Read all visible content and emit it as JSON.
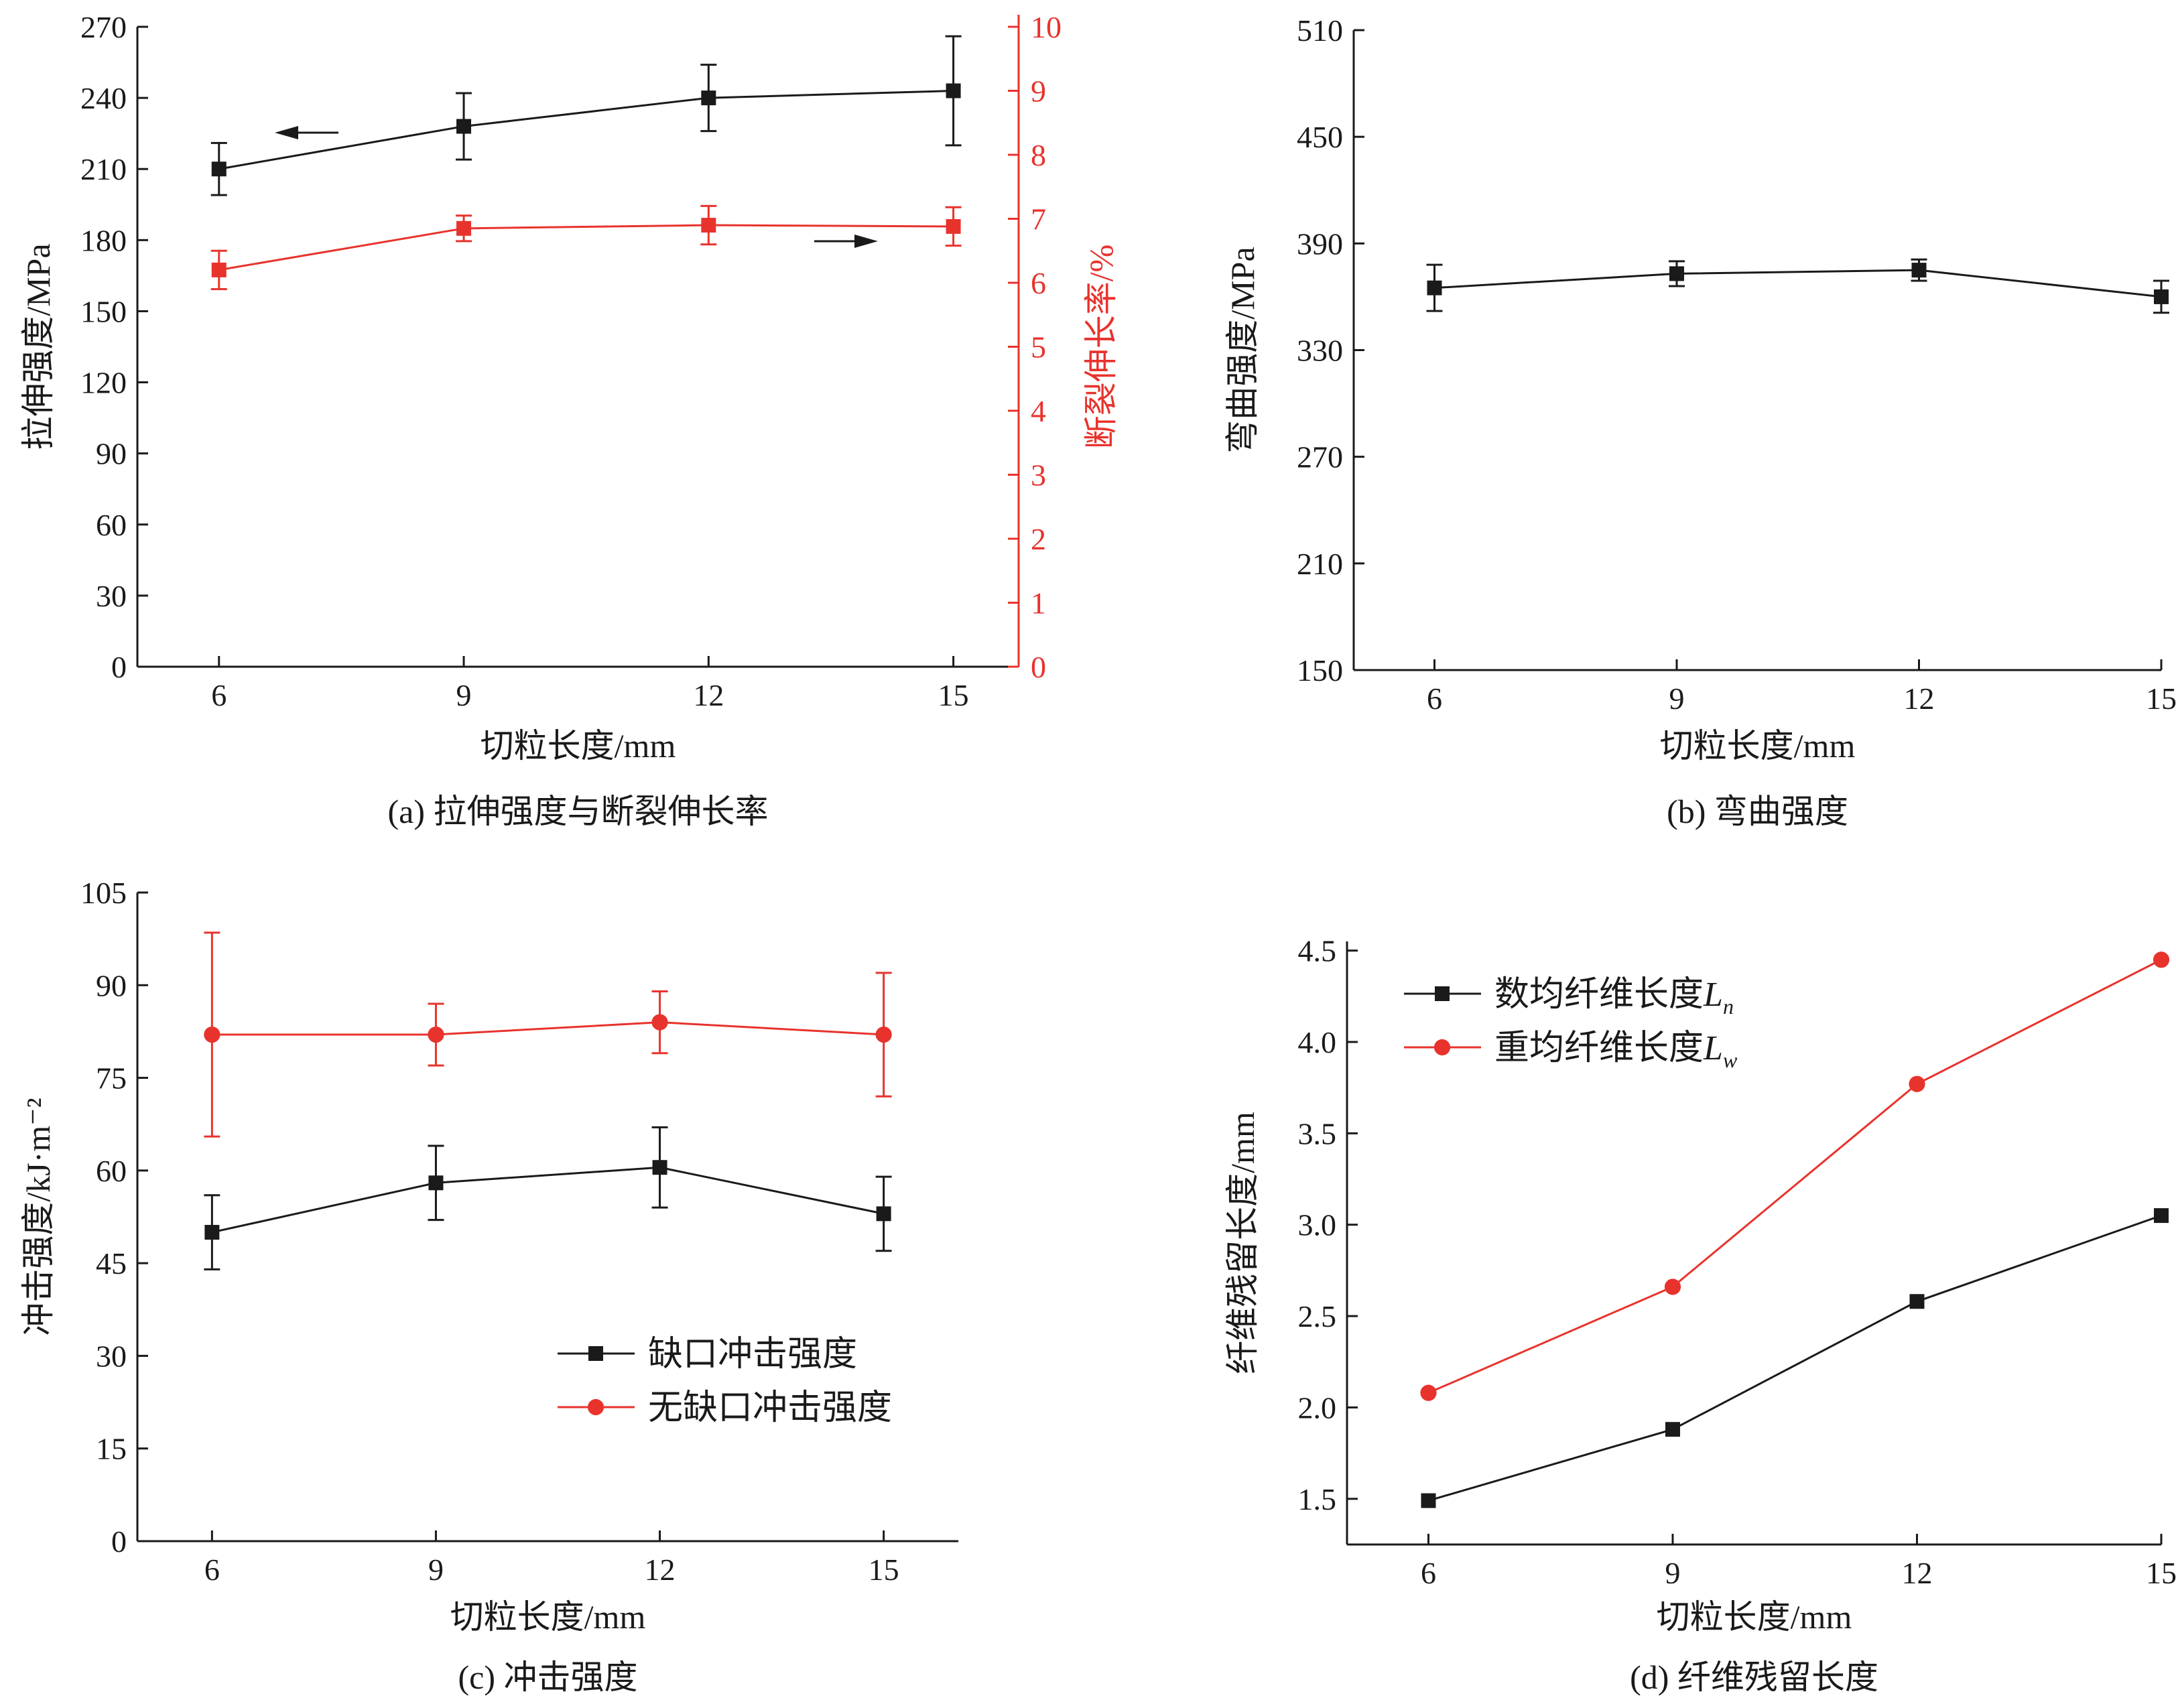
{
  "colors": {
    "black": "#1a1a1a",
    "red": "#e8332d"
  },
  "chart_data": [
    {
      "id": "a",
      "type": "line",
      "caption": "(a) 拉伸强度与断裂伸长率",
      "xlabel": "切粒长度/mm",
      "ylabel": "拉伸强度/MPa",
      "y2label": "断裂伸长率/%",
      "x": [
        6,
        9,
        12,
        15
      ],
      "xlim": [
        5,
        15.8
      ],
      "ylim": [
        0,
        270
      ],
      "yticks": [
        0,
        30,
        60,
        90,
        120,
        150,
        180,
        210,
        240,
        270
      ],
      "y2lim": [
        0,
        10
      ],
      "y2ticks": [
        0,
        1,
        2,
        3,
        4,
        5,
        6,
        7,
        8,
        9,
        10
      ],
      "series": [
        {
          "axis": "left",
          "color": "black",
          "marker": "square",
          "values": [
            210,
            228,
            240,
            243
          ],
          "errors": [
            11,
            14,
            14,
            23
          ]
        },
        {
          "axis": "right",
          "color": "red",
          "marker": "square",
          "values": [
            6.2,
            6.85,
            6.9,
            6.88
          ],
          "errors": [
            0.3,
            0.2,
            0.3,
            0.3
          ]
        }
      ]
    },
    {
      "id": "b",
      "type": "line",
      "caption": "(b) 弯曲强度",
      "xlabel": "切粒长度/mm",
      "ylabel": "弯曲强度/MPa",
      "x": [
        6,
        9,
        12,
        15
      ],
      "xlim": [
        5,
        15
      ],
      "ylim": [
        150,
        510
      ],
      "yticks": [
        150,
        210,
        270,
        330,
        390,
        450,
        510
      ],
      "series": [
        {
          "color": "black",
          "marker": "square",
          "values": [
            365,
            373,
            375,
            360
          ],
          "errors": [
            13,
            7,
            6,
            9
          ]
        }
      ]
    },
    {
      "id": "c",
      "type": "line",
      "caption": "(c) 冲击强度",
      "xlabel": "切粒长度/mm",
      "ylabel": "冲击强度/kJ·m⁻²",
      "x": [
        6,
        9,
        12,
        15
      ],
      "xlim": [
        5,
        16
      ],
      "ylim": [
        0,
        105
      ],
      "yticks": [
        0,
        15,
        30,
        45,
        60,
        75,
        90,
        105
      ],
      "legend_position": "lower-right",
      "series": [
        {
          "name": "缺口冲击强度",
          "color": "black",
          "marker": "square",
          "values": [
            50,
            58,
            60.5,
            53
          ],
          "errors": [
            6,
            6,
            6.5,
            6
          ]
        },
        {
          "name": "无缺口冲击强度",
          "color": "red",
          "marker": "circle",
          "values": [
            82,
            82,
            84,
            82
          ],
          "errors": [
            16.5,
            5,
            5,
            10
          ]
        }
      ]
    },
    {
      "id": "d",
      "type": "line",
      "caption": "(d) 纤维残留长度",
      "xlabel": "切粒长度/mm",
      "ylabel": "纤维残留长度/mm",
      "x": [
        6,
        9,
        12,
        15
      ],
      "xlim": [
        5,
        15
      ],
      "ylim": [
        1.25,
        4.55
      ],
      "yticks": [
        "1.5",
        "2.0",
        "2.5",
        "3.0",
        "3.5",
        "4.0",
        "4.5"
      ],
      "legend_position": "upper-left",
      "series": [
        {
          "name": "数均纤维长度",
          "name_symbol": "L",
          "name_sub": "n",
          "color": "black",
          "marker": "square",
          "values": [
            1.49,
            1.88,
            2.58,
            3.05
          ]
        },
        {
          "name": "重均纤维长度",
          "name_symbol": "L",
          "name_sub": "w",
          "color": "red",
          "marker": "circle",
          "values": [
            2.08,
            2.66,
            3.77,
            4.45
          ]
        }
      ]
    }
  ]
}
